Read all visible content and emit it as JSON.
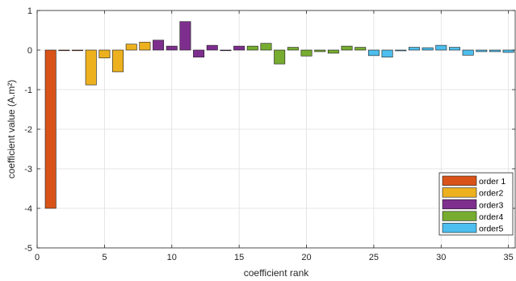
{
  "chart_data": {
    "type": "bar",
    "xlabel": "coefficient rank",
    "ylabel": "coefficient value (A.m²)",
    "ylim": [
      -5,
      1
    ],
    "xlim": [
      0,
      35.5
    ],
    "xticks": [
      0,
      5,
      10,
      15,
      20,
      25,
      30,
      35
    ],
    "yticks": [
      -5,
      -4,
      -3,
      -2,
      -1,
      0,
      1
    ],
    "grid": true,
    "legend_position": "bottom-right",
    "series": [
      {
        "name": "order 1",
        "color": "#D95319",
        "x": [
          1,
          2,
          3
        ],
        "values": [
          -4.0,
          0.0,
          0.0
        ]
      },
      {
        "name": "order2",
        "color": "#EDB120",
        "x": [
          4,
          5,
          6,
          7,
          8
        ],
        "values": [
          -0.88,
          -0.2,
          -0.55,
          0.15,
          0.2
        ]
      },
      {
        "name": "order3",
        "color": "#7E2F8E",
        "x": [
          9,
          10,
          11,
          12,
          13,
          14,
          15
        ],
        "values": [
          0.25,
          0.1,
          0.72,
          -0.18,
          0.12,
          0.0,
          0.1
        ]
      },
      {
        "name": "order4",
        "color": "#77AC30",
        "x": [
          16,
          17,
          18,
          19,
          20,
          21,
          22,
          23,
          24
        ],
        "values": [
          0.1,
          0.17,
          -0.35,
          0.07,
          -0.15,
          -0.04,
          -0.08,
          0.1,
          0.07
        ]
      },
      {
        "name": "order5",
        "color": "#4DBEEE",
        "x": [
          25,
          26,
          27,
          28,
          29,
          30,
          31,
          32,
          33,
          34,
          35
        ],
        "values": [
          -0.14,
          -0.18,
          -0.02,
          0.07,
          0.06,
          0.12,
          0.07,
          -0.13,
          -0.04,
          -0.04,
          -0.06
        ]
      }
    ]
  }
}
